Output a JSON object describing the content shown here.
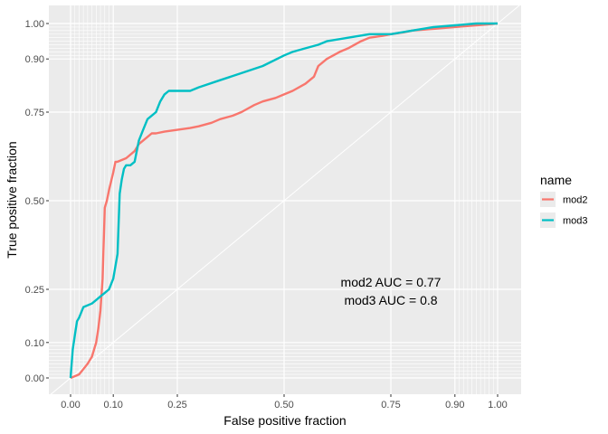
{
  "chart_data": {
    "type": "line",
    "xlabel": "False positive fraction",
    "ylabel": "True positive fraction",
    "xlim": [
      0,
      1
    ],
    "ylim": [
      0,
      1
    ],
    "x_ticks": [
      {
        "value": 0.0,
        "label": "0.00"
      },
      {
        "value": 0.1,
        "label": "0.10"
      },
      {
        "value": 0.25,
        "label": "0.25"
      },
      {
        "value": 0.5,
        "label": "0.50"
      },
      {
        "value": 0.75,
        "label": "0.75"
      },
      {
        "value": 0.9,
        "label": "0.90"
      },
      {
        "value": 1.0,
        "label": "1.00"
      }
    ],
    "y_ticks": [
      {
        "value": 0.0,
        "label": "0.00"
      },
      {
        "value": 0.1,
        "label": "0.10"
      },
      {
        "value": 0.25,
        "label": "0.25"
      },
      {
        "value": 0.5,
        "label": "0.50"
      },
      {
        "value": 0.75,
        "label": "0.75"
      },
      {
        "value": 0.9,
        "label": "0.90"
      },
      {
        "value": 1.0,
        "label": "1.00"
      }
    ],
    "minor_grid": [
      0.01,
      0.02,
      0.03,
      0.04,
      0.05,
      0.06,
      0.07,
      0.08,
      0.09,
      0.91,
      0.92,
      0.93,
      0.94,
      0.95,
      0.96,
      0.97,
      0.98,
      0.99
    ],
    "grid": true,
    "diagonal_reference": true,
    "legend_title": "name",
    "legend_position": "right",
    "annotations": [
      "mod2 AUC = 0.77",
      "mod3 AUC = 0.8"
    ],
    "series": [
      {
        "name": "mod2",
        "color": "#F8766D",
        "x": [
          0.0,
          0.02,
          0.04,
          0.05,
          0.06,
          0.065,
          0.07,
          0.075,
          0.08,
          0.085,
          0.09,
          0.1,
          0.105,
          0.11,
          0.13,
          0.15,
          0.16,
          0.17,
          0.18,
          0.19,
          0.2,
          0.22,
          0.25,
          0.28,
          0.3,
          0.33,
          0.35,
          0.38,
          0.4,
          0.43,
          0.45,
          0.48,
          0.5,
          0.52,
          0.55,
          0.57,
          0.58,
          0.6,
          0.63,
          0.65,
          0.68,
          0.7,
          0.73,
          0.75,
          0.78,
          0.8,
          0.85,
          0.9,
          0.95,
          1.0
        ],
        "y": [
          0.0,
          0.01,
          0.04,
          0.06,
          0.1,
          0.14,
          0.19,
          0.28,
          0.48,
          0.5,
          0.53,
          0.58,
          0.61,
          0.61,
          0.62,
          0.64,
          0.66,
          0.67,
          0.68,
          0.69,
          0.69,
          0.695,
          0.7,
          0.705,
          0.71,
          0.72,
          0.73,
          0.74,
          0.75,
          0.77,
          0.78,
          0.79,
          0.8,
          0.81,
          0.83,
          0.85,
          0.88,
          0.9,
          0.92,
          0.93,
          0.95,
          0.96,
          0.965,
          0.97,
          0.975,
          0.98,
          0.985,
          0.99,
          0.995,
          1.0
        ]
      },
      {
        "name": "mod3",
        "color": "#00BFC4",
        "x": [
          0.0,
          0.005,
          0.01,
          0.015,
          0.02,
          0.03,
          0.05,
          0.06,
          0.07,
          0.08,
          0.09,
          0.1,
          0.11,
          0.115,
          0.12,
          0.125,
          0.13,
          0.14,
          0.15,
          0.16,
          0.17,
          0.18,
          0.2,
          0.21,
          0.22,
          0.23,
          0.25,
          0.28,
          0.3,
          0.35,
          0.4,
          0.45,
          0.5,
          0.52,
          0.55,
          0.58,
          0.6,
          0.65,
          0.7,
          0.75,
          0.8,
          0.85,
          0.9,
          0.95,
          1.0
        ],
        "y": [
          0.0,
          0.08,
          0.12,
          0.16,
          0.17,
          0.2,
          0.21,
          0.22,
          0.23,
          0.24,
          0.25,
          0.28,
          0.35,
          0.52,
          0.56,
          0.59,
          0.6,
          0.6,
          0.61,
          0.67,
          0.7,
          0.73,
          0.75,
          0.78,
          0.8,
          0.81,
          0.81,
          0.81,
          0.82,
          0.84,
          0.86,
          0.88,
          0.91,
          0.92,
          0.93,
          0.94,
          0.95,
          0.96,
          0.97,
          0.97,
          0.98,
          0.99,
          0.995,
          1.0,
          1.0
        ]
      }
    ]
  }
}
